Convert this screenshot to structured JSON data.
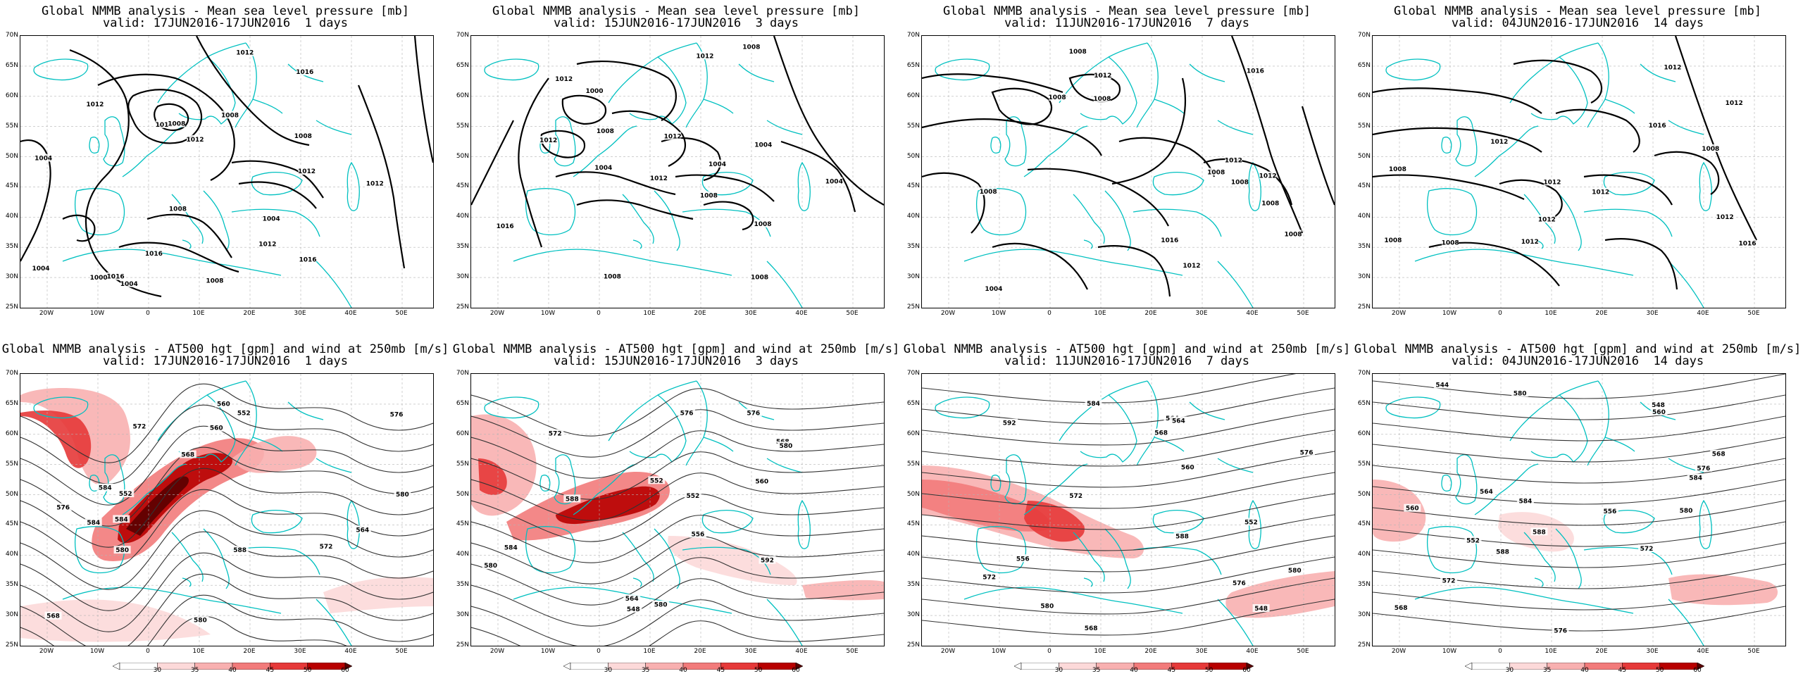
{
  "panels": [
    {
      "title": "Global NMMB analysis - Mean sea level pressure [mb]",
      "valid": "valid: 17JUN2016-17JUN2016  1 days",
      "type": "mslp",
      "labels": [
        "1016",
        "1008",
        "1004",
        "1012",
        "1008",
        "1008",
        "1004",
        "1004",
        "1016",
        "1012",
        "1016",
        "1012",
        "1016",
        "1016",
        "1012",
        "1008",
        "1012",
        "1008",
        "1004",
        "1000",
        "1012"
      ]
    },
    {
      "title": "Global NMMB analysis - Mean sea level pressure [mb]",
      "valid": "valid: 15JUN2016-17JUN2016  3 days",
      "type": "mslp",
      "labels": [
        "1016",
        "1008",
        "1004",
        "1000",
        "1012",
        "1008",
        "1004",
        "1008",
        "1012",
        "1008",
        "1012",
        "1012",
        "1004",
        "1008",
        "1004",
        "1008",
        "1012"
      ]
    },
    {
      "title": "Global NMMB analysis - Mean sea level pressure [mb]",
      "valid": "valid: 11JUN2016-17JUN2016  7 days",
      "type": "mslp",
      "labels": [
        "1012",
        "1008",
        "1008",
        "1004",
        "1012",
        "1008",
        "1016",
        "1016",
        "1008",
        "1008",
        "1012",
        "1012",
        "1008",
        "1008",
        "1008"
      ]
    },
    {
      "title": "Global NMMB analysis - Mean sea level pressure [mb]",
      "valid": "valid: 04JUN2016-17JUN2016  14 days",
      "type": "mslp",
      "labels": [
        "1016",
        "1008",
        "1012",
        "1008",
        "1012",
        "1012",
        "1016",
        "1012",
        "1012",
        "1012",
        "1008",
        "1012",
        "1008",
        "1012"
      ]
    },
    {
      "title": "Global NMMB analysis - AT500 hgt [gpm] and wind at 250mb [m/s]",
      "valid": "valid: 17JUN2016-17JUN2016  1 days",
      "type": "z500",
      "labels": [
        "552",
        "552",
        "560",
        "564",
        "568",
        "572",
        "576",
        "580",
        "584",
        "560",
        "568",
        "576",
        "580",
        "584",
        "588",
        "572",
        "580",
        "584"
      ]
    },
    {
      "title": "Global NMMB analysis - AT500 hgt [gpm] and wind at 250mb [m/s]",
      "valid": "valid: 15JUN2016-17JUN2016  3 days",
      "type": "z500",
      "labels": [
        "548",
        "552",
        "556",
        "560",
        "564",
        "568",
        "572",
        "576",
        "580",
        "584",
        "588",
        "552",
        "576",
        "580",
        "592",
        "580"
      ]
    },
    {
      "title": "Global NMMB analysis - AT500 hgt [gpm] and wind at 250mb [m/s]",
      "valid": "valid: 11JUN2016-17JUN2016  7 days",
      "type": "z500",
      "labels": [
        "556",
        "560",
        "564",
        "568",
        "572",
        "576",
        "580",
        "552",
        "548",
        "564",
        "568",
        "572",
        "576",
        "584",
        "580",
        "588",
        "592"
      ]
    },
    {
      "title": "Global NMMB analysis - AT500 hgt [gpm] and wind at 250mb [m/s]",
      "valid": "valid: 04JUN2016-17JUN2016  14 days",
      "type": "z500",
      "labels": [
        "560",
        "568",
        "572",
        "576",
        "580",
        "584",
        "588",
        "544",
        "548",
        "552",
        "556",
        "560",
        "564",
        "568",
        "572",
        "576",
        "580",
        "584",
        "588"
      ]
    }
  ],
  "axes": {
    "lat_labels": [
      "70N",
      "65N",
      "60N",
      "55N",
      "50N",
      "45N",
      "40N",
      "35N",
      "30N",
      "25N"
    ],
    "lon_labels": [
      "20W",
      "10W",
      "0",
      "10E",
      "20E",
      "30E",
      "40E",
      "50E"
    ]
  },
  "colorbar": {
    "labels": [
      "30",
      "35",
      "40",
      "45",
      "50",
      "60"
    ],
    "colors": [
      "#ffffff",
      "#fcd9d9",
      "#f8b0b0",
      "#f27b7b",
      "#e63939",
      "#b80000",
      "#5a0000"
    ]
  },
  "colors": {
    "coast": "#00c0c0",
    "contour": "#000000",
    "grid": "#b4b4b4"
  }
}
